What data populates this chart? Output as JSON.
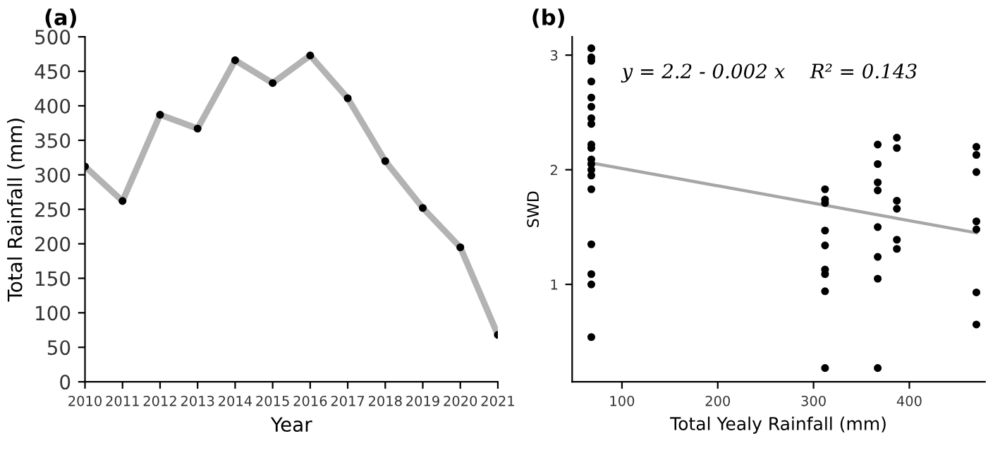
{
  "chart_data": [
    {
      "type": "line",
      "title": "(a)",
      "xlabel": "Year",
      "ylabel": "Total Rainfall (mm)",
      "x": [
        2010,
        2011,
        2012,
        2013,
        2014,
        2015,
        2016,
        2017,
        2018,
        2019,
        2020,
        2021
      ],
      "series": [
        {
          "color": "#b3b3b3",
          "values": [
            312,
            262,
            387,
            367,
            466,
            433,
            473,
            411,
            320,
            252,
            195,
            68
          ]
        }
      ],
      "marker": "circle",
      "xlim": [
        2010,
        2021
      ],
      "xticks": [
        2010,
        2011,
        2012,
        2013,
        2014,
        2015,
        2016,
        2017,
        2018,
        2019,
        2020,
        2021
      ],
      "ylim": [
        0,
        500
      ],
      "yticks": [
        0,
        50,
        100,
        150,
        200,
        250,
        300,
        350,
        400,
        450,
        500
      ],
      "grid": false,
      "legend": false
    },
    {
      "type": "scatter",
      "title": "(b)",
      "xlabel": "Total Yealy Rainfall (mm)",
      "ylabel": "SWD",
      "annotations": [
        "y = 2.2 - 0.002 x    R² = 0.143"
      ],
      "series": [
        {
          "color": "#000000",
          "x": [
            68,
            68,
            68,
            68,
            68,
            68,
            68,
            68,
            68,
            68,
            68,
            68,
            68,
            68,
            68,
            68,
            68,
            68,
            68
          ],
          "values": [
            3.06,
            2.98,
            2.95,
            2.77,
            2.63,
            2.55,
            2.45,
            2.4,
            2.22,
            2.19,
            2.09,
            2.05,
            2.0,
            1.95,
            1.83,
            1.35,
            1.09,
            1.0,
            0.54
          ]
        },
        {
          "color": "#000000",
          "x": [
            312,
            312,
            312,
            312,
            312,
            312,
            312,
            312,
            312
          ],
          "values": [
            1.83,
            1.74,
            1.71,
            1.47,
            1.34,
            1.13,
            1.09,
            0.94,
            0.27
          ]
        },
        {
          "color": "#000000",
          "x": [
            367,
            367,
            367,
            367,
            367,
            367,
            367,
            367
          ],
          "values": [
            2.22,
            2.05,
            1.89,
            1.82,
            1.5,
            1.24,
            1.05,
            0.27
          ]
        },
        {
          "color": "#000000",
          "x": [
            387,
            387,
            387,
            387,
            387,
            387
          ],
          "values": [
            2.28,
            2.19,
            1.73,
            1.66,
            1.39,
            1.31
          ]
        },
        {
          "color": "#000000",
          "x": [
            470,
            470,
            470,
            470,
            470,
            470,
            470
          ],
          "values": [
            2.2,
            2.13,
            1.98,
            1.55,
            1.48,
            0.93,
            0.65
          ]
        },
        {
          "type": "line",
          "marker": "none",
          "color": "#a6a6a6",
          "x": [
            68,
            470
          ],
          "values": [
            2.06,
            1.45
          ]
        }
      ],
      "marker": "circle",
      "xlim": [
        48,
        479
      ],
      "xticks": [
        100,
        200,
        300,
        400
      ],
      "ylim": [
        0.15,
        3.16
      ],
      "yticks": [
        1,
        2,
        3
      ],
      "grid": false,
      "legend": false
    }
  ]
}
